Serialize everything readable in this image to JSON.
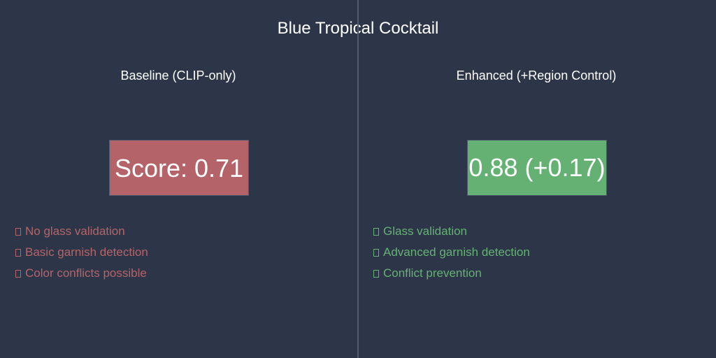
{
  "title": "Blue Tropical Cocktail",
  "baseline": {
    "heading": "Baseline (CLIP-only)",
    "score_text": "Score: 0.71",
    "color": "#b46468",
    "features": [
      "No glass validation",
      "Basic garnish detection",
      "Color conflicts possible"
    ]
  },
  "enhanced": {
    "heading": "Enhanced (+Region Control)",
    "score_text": "0.88 (+0.17)",
    "color": "#64b173",
    "features": [
      "Glass validation",
      "Advanced garnish detection",
      "Conflict prevention"
    ]
  },
  "feature_icon": "missing-glyph-box-icon"
}
